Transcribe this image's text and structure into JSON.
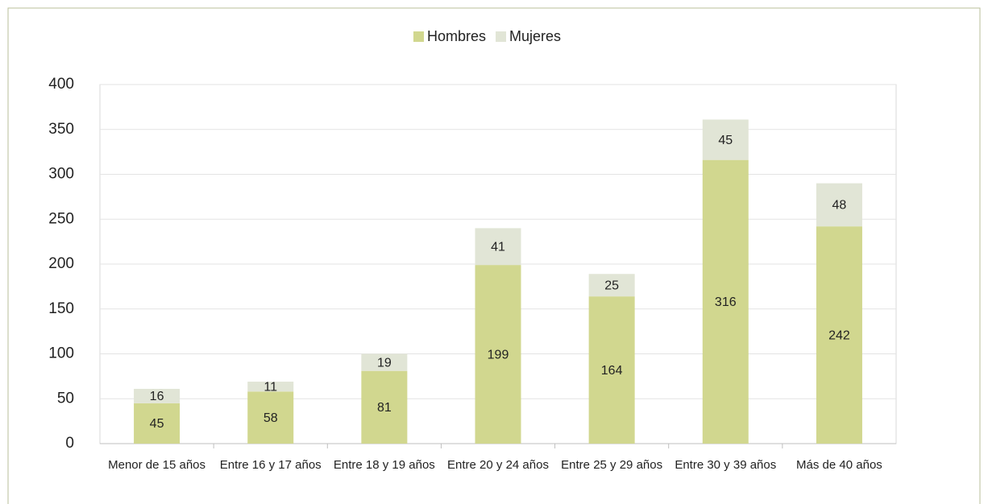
{
  "chart_data": {
    "type": "stacked_bar",
    "categories": [
      "Menor de 15 años",
      "Entre 16 y 17 años",
      "Entre 18 y 19 años",
      "Entre 20 y 24 años",
      "Entre 25 y 29 años",
      "Entre 30 y 39 años",
      "Más de 40 años"
    ],
    "series": [
      {
        "name": "Hombres",
        "color": "#d1d78f",
        "values": [
          45,
          58,
          81,
          199,
          164,
          316,
          242
        ]
      },
      {
        "name": "Mujeres",
        "color": "#e1e5d6",
        "values": [
          16,
          11,
          19,
          41,
          25,
          45,
          48
        ]
      }
    ],
    "ylim": [
      0,
      400
    ],
    "yticks": [
      0,
      50,
      100,
      150,
      200,
      250,
      300,
      350,
      400
    ],
    "grid": true,
    "legend": "top"
  }
}
